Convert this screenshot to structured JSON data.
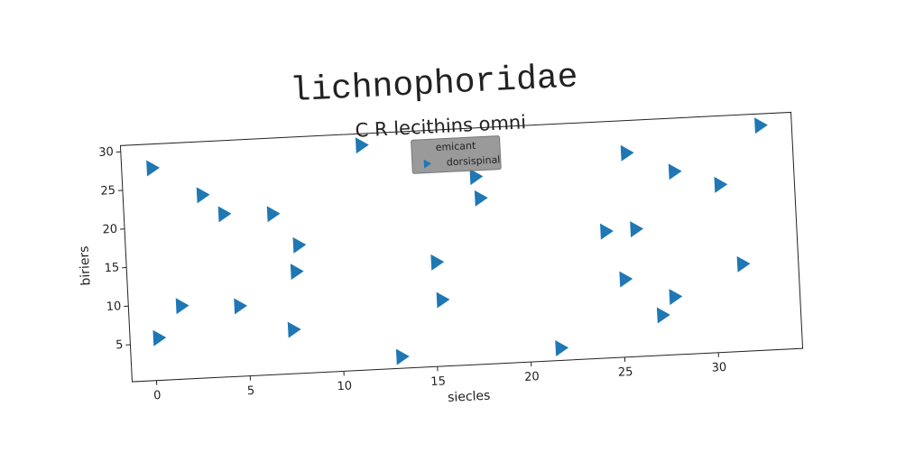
{
  "chart_data": {
    "type": "scatter",
    "title": "lichnophoridae",
    "subtitle": "C R lecithins omni",
    "x_label": "siecles",
    "y_label": "biriers",
    "legend_title": "emicant",
    "legend_position": "upper center",
    "xlim": [
      -1.3,
      34.5
    ],
    "xticks": [
      0,
      5,
      10,
      15,
      20,
      25,
      30
    ],
    "ylim": [
      0.2,
      30.8
    ],
    "yticks": [
      5,
      10,
      15,
      20,
      25,
      30
    ],
    "grid": false,
    "series": [
      {
        "name": "dorsispinal",
        "color": "#1f77b4",
        "marker": "triangle-right",
        "x": [
          0.3,
          2.9,
          4.0,
          6.6,
          7.9,
          7.7,
          1.5,
          4.6,
          0.2,
          7.4,
          11.5,
          13.1,
          15.2,
          15.4,
          17.5,
          17.7,
          21.6,
          24.3,
          25.9,
          25.2,
          25.6,
          28.1,
          27.8,
          27.1,
          30.5,
          31.5,
          32.8
        ],
        "values": [
          27.7,
          23.9,
          21.3,
          21.0,
          16.8,
          13.4,
          9.7,
          9.3,
          5.7,
          5.9,
          29.3,
          1.7,
          13.7,
          8.8,
          24.5,
          21.7,
          1.8,
          16.6,
          16.7,
          10.3,
          26.6,
          23.9,
          7.7,
          5.4,
          21.9,
          11.5,
          29.3
        ]
      }
    ]
  }
}
